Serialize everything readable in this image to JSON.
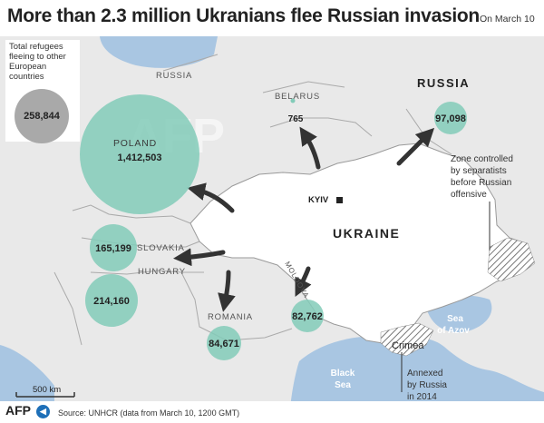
{
  "title": "More than 2.3 million Ukranians flee Russian invasion",
  "date": "On March 10",
  "legend": {
    "text": "Total refugees fleeing to other European countries",
    "value": "258,844"
  },
  "countries": {
    "russia_top": "RUSSIA",
    "russia_west": "RUSSIA",
    "belarus": "BELARUS",
    "poland": "POLAND",
    "slovakia": "SLOVAKIA",
    "hungary": "HUNGARY",
    "romania": "ROMANIA",
    "moldova": "MOLDOVA",
    "ukraine": "UKRAINE"
  },
  "refugees": {
    "poland": "1,412,503",
    "slovakia": "165,199",
    "hungary": "214,160",
    "romania": "84,671",
    "moldova": "82,762",
    "russia": "97,098",
    "belarus": "765"
  },
  "places": {
    "kyiv": "KYIV",
    "crimea": "Crimea",
    "black_sea_1": "Black",
    "black_sea_2": "Sea",
    "sea_azov_1": "Sea",
    "sea_azov_2": "of Azov"
  },
  "annotations": {
    "zone_1": "Zone controlled",
    "zone_2": "by separatists",
    "zone_3": "before Russian",
    "zone_4": "offensive",
    "annexed_1": "Annexed",
    "annexed_2": "by Russia",
    "annexed_3": "in 2014"
  },
  "scale": "500 km",
  "watermark": "AFP",
  "footer": {
    "logo": "AFP",
    "source": "Source: UNHCR (data from March 10, 1200 GMT)"
  },
  "colors": {
    "bubble": "#82cbb8",
    "land": "#e9e9e9",
    "ukraine": "#ffffff",
    "sea": "#a9c6e2",
    "legend_bubble": "#a9a9a9"
  }
}
